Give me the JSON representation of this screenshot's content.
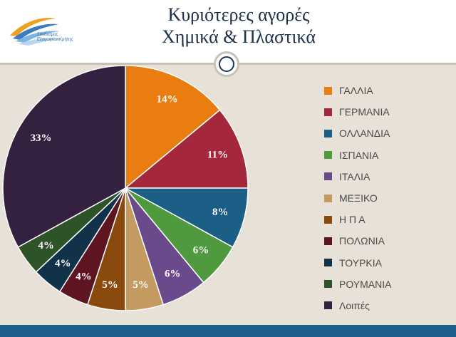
{
  "slide": {
    "title_line1": "Κυριότερες αγορές",
    "title_line2": "Χημικά & Πλαστικά",
    "logo_text_line1": "Σύνδεσμος",
    "logo_text_line2": "ΕξαγωγέωνΚρήτης"
  },
  "colors": {
    "header_bg": "#ffffff",
    "slide_bg": "#e8e1d7",
    "footer_bar": "#1f5f8b",
    "title_text": "#1b2f48"
  },
  "chart_data": {
    "type": "pie",
    "title": "",
    "legend_position": "right",
    "start": "12 o'clock, clockwise",
    "slices": [
      {
        "label": "ΓΑΛΛΙΑ",
        "value": 14,
        "value_label": "14%",
        "color": "#e97d10"
      },
      {
        "label": "ΓΕΡΜΑΝΙΑ",
        "value": 11,
        "value_label": "11%",
        "color": "#a4273b"
      },
      {
        "label": "ΟΛΛΑΝΔΙΑ",
        "value": 8,
        "value_label": "8%",
        "color": "#1c5f86"
      },
      {
        "label": "ΙΣΠΑΝΙΑ",
        "value": 6,
        "value_label": "6%",
        "color": "#4f9a3f"
      },
      {
        "label": "ΙΤΑΛΙΑ",
        "value": 6,
        "value_label": "6%",
        "color": "#6b4a8b"
      },
      {
        "label": "ΜΕΞΙΚΟ",
        "value": 5,
        "value_label": "5%",
        "color": "#c39a5f"
      },
      {
        "label": "Η Π Α",
        "value": 5,
        "value_label": "5%",
        "color": "#8a4a0d"
      },
      {
        "label": "ΠΟΛΩΝΙΑ",
        "value": 4,
        "value_label": "4%",
        "color": "#5e1521"
      },
      {
        "label": "ΤΟΥΡΚΙΑ",
        "value": 4,
        "value_label": "4%",
        "color": "#12324a"
      },
      {
        "label": "ΡΟΥΜΑΝΙΑ",
        "value": 4,
        "value_label": "4%",
        "color": "#2f5329"
      },
      {
        "label": "Λοιπές",
        "value": 33,
        "value_label": "33%",
        "color": "#33213f"
      }
    ]
  }
}
